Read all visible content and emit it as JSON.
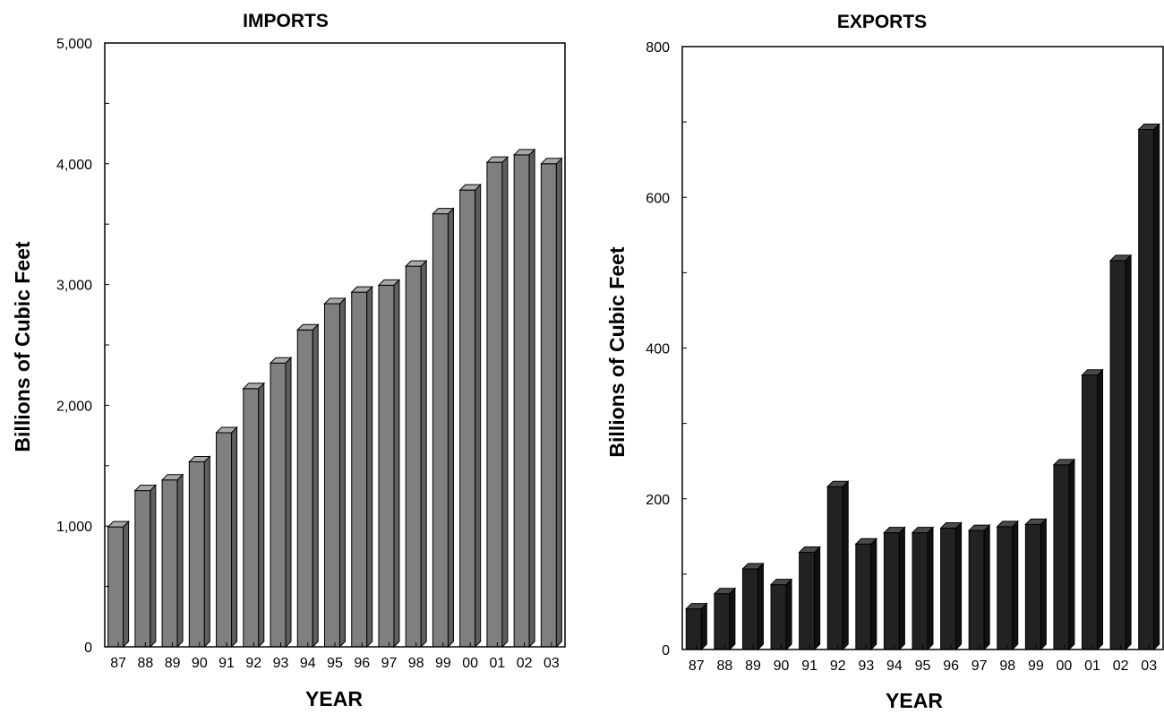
{
  "colors": {
    "imports_front": "#7f7f7f",
    "imports_side": "#5e5e5e",
    "imports_top": "#a8a8a8",
    "exports_front": "#222222",
    "exports_side": "#111111",
    "exports_top": "#4a4a4a",
    "frame": "#000000"
  },
  "chart_data": [
    {
      "type": "bar",
      "title": "IMPORTS",
      "xlabel": "YEAR",
      "ylabel": "Billions of Cubic Feet",
      "categories": [
        "87",
        "88",
        "89",
        "90",
        "91",
        "92",
        "93",
        "94",
        "95",
        "96",
        "97",
        "98",
        "99",
        "00",
        "01",
        "02",
        "03"
      ],
      "values": [
        993,
        1294,
        1382,
        1532,
        1773,
        2138,
        2350,
        2624,
        2841,
        2937,
        2994,
        3152,
        3586,
        3782,
        4012,
        4074,
        4000
      ],
      "ylim": [
        0,
        5000
      ],
      "yticks": [
        0,
        1000,
        2000,
        3000,
        4000,
        5000
      ],
      "ytick_labels": [
        "0",
        "1,000",
        "2,000",
        "3,000",
        "4,000",
        "5,000"
      ],
      "grid": false
    },
    {
      "type": "bar",
      "title": "EXPORTS",
      "xlabel": "YEAR",
      "ylabel": "Billions of Cubic Feet",
      "categories": [
        "87",
        "88",
        "89",
        "90",
        "91",
        "92",
        "93",
        "94",
        "95",
        "96",
        "97",
        "98",
        "99",
        "00",
        "01",
        "02",
        "03"
      ],
      "values": [
        54,
        74,
        107,
        86,
        129,
        216,
        140,
        155,
        155,
        161,
        158,
        163,
        166,
        245,
        364,
        516,
        690
      ],
      "ylim": [
        0,
        800
      ],
      "yticks": [
        0,
        200,
        400,
        600,
        800
      ],
      "ytick_labels": [
        "0",
        "200",
        "400",
        "600",
        "800"
      ],
      "grid": false
    }
  ]
}
